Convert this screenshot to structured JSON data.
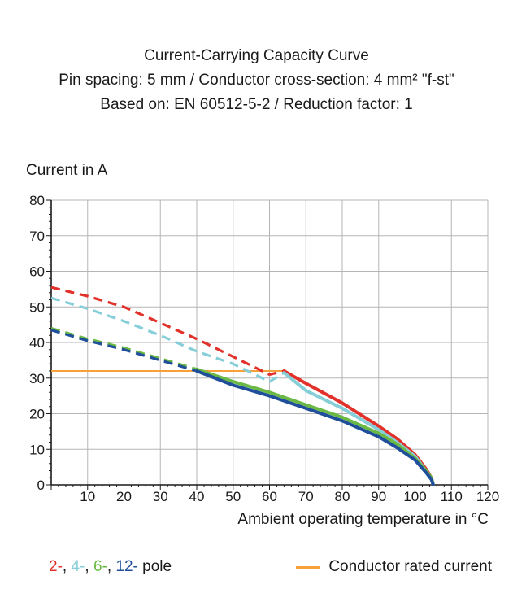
{
  "title_lines": [
    "Current-Carrying Capacity Curve",
    "Pin spacing: 5 mm / Conductor cross-section: 4 mm² \"f-st\"",
    "Based on: EN 60512-5-2 / Reduction factor: 1"
  ],
  "legend": {
    "poles": [
      {
        "text": "2-",
        "color": "#e2312a"
      },
      {
        "text": ", ",
        "color": "#1a1a1a"
      },
      {
        "text": "4-",
        "color": "#86cfd8"
      },
      {
        "text": ", ",
        "color": "#1a1a1a"
      },
      {
        "text": "6-",
        "color": "#6ab945"
      },
      {
        "text": ", ",
        "color": "#1a1a1a"
      },
      {
        "text": "12-",
        "color": "#1f4e9a"
      },
      {
        "text": " pole",
        "color": "#1a1a1a"
      }
    ],
    "rated_label": "Conductor rated current",
    "rated_color": "#f7a13a"
  },
  "chart_data": {
    "type": "line",
    "xlabel": "Ambient operating temperature in °C",
    "ylabel": "Current in A",
    "xlim": [
      0,
      120
    ],
    "ylim": [
      0,
      80
    ],
    "xticks": [
      10,
      20,
      30,
      40,
      50,
      60,
      70,
      80,
      90,
      100,
      110,
      120
    ],
    "yticks": [
      0,
      10,
      20,
      30,
      40,
      50,
      60,
      70,
      80
    ],
    "grid": true,
    "rated_current": {
      "name": "Conductor rated current",
      "value": 32,
      "x_range": [
        0,
        64
      ],
      "color": "#f7a13a"
    },
    "series": [
      {
        "name": "2-",
        "color": "#e2312a",
        "dashed": {
          "x": [
            0,
            10,
            20,
            30,
            40,
            50,
            60,
            64
          ],
          "y": [
            55.5,
            53,
            50,
            45.5,
            41,
            36,
            31,
            32
          ]
        },
        "solid": {
          "x": [
            64,
            70,
            80,
            90,
            95,
            100,
            103,
            104.5,
            105
          ],
          "y": [
            32,
            28.5,
            23,
            16.5,
            13,
            8.5,
            4.5,
            2,
            0
          ]
        }
      },
      {
        "name": "4-",
        "color": "#86cfd8",
        "dashed": {
          "x": [
            0,
            10,
            20,
            30,
            40,
            50,
            60,
            64
          ],
          "y": [
            52.5,
            49.5,
            46,
            42,
            37.5,
            34,
            29,
            31.5
          ]
        },
        "solid": {
          "x": [
            64,
            70,
            80,
            90,
            95,
            100,
            103,
            104.5,
            105
          ],
          "y": [
            31.5,
            26.5,
            21.5,
            15.5,
            12,
            8,
            4,
            2,
            0
          ]
        }
      },
      {
        "name": "6-",
        "color": "#6ab945",
        "dashed": {
          "x": [
            0,
            10,
            20,
            30,
            40
          ],
          "y": [
            44,
            41,
            38.5,
            35.5,
            32.5
          ]
        },
        "solid": {
          "x": [
            40,
            50,
            60,
            70,
            80,
            90,
            95,
            100,
            103,
            104.5,
            105
          ],
          "y": [
            32.5,
            29,
            26,
            22.5,
            19,
            14.5,
            11.5,
            7.5,
            4,
            2,
            0
          ]
        }
      },
      {
        "name": "12-",
        "color": "#1f4e9a",
        "dashed": {
          "x": [
            0,
            10,
            20,
            30,
            40
          ],
          "y": [
            43.5,
            40.5,
            38,
            35,
            32
          ]
        },
        "solid": {
          "x": [
            40,
            50,
            60,
            70,
            80,
            90,
            95,
            100,
            103,
            104.5,
            105
          ],
          "y": [
            32,
            28,
            25,
            21.5,
            18,
            13.5,
            10.5,
            7,
            3.5,
            1.5,
            0
          ]
        }
      }
    ]
  }
}
